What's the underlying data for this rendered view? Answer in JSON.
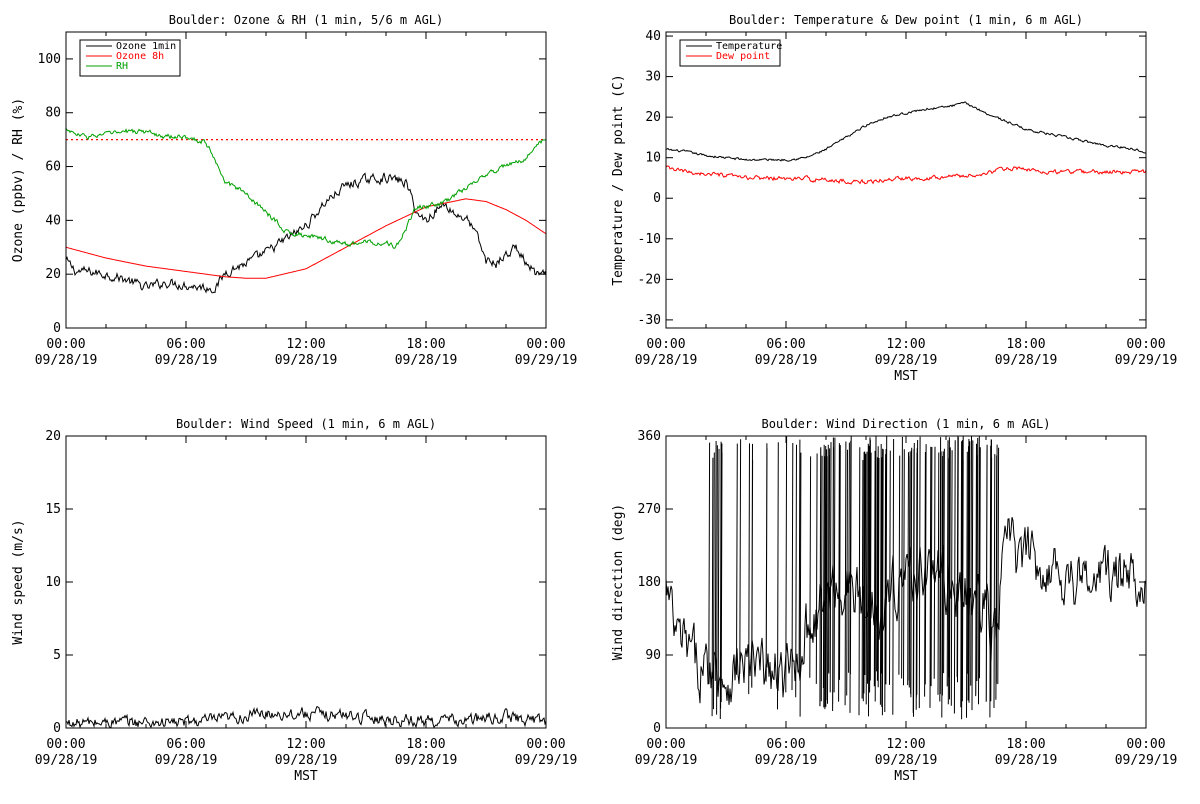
{
  "chart_data": [
    {
      "type": "line",
      "title": "Boulder: Ozone & RH (1 min, 5/6 m AGL)",
      "ylabel": "Ozone (ppbv) / RH (%)",
      "xlabel": "",
      "xlim": [
        0,
        24
      ],
      "ylim": [
        0,
        110
      ],
      "yticks": [
        0,
        20,
        40,
        60,
        80,
        100
      ],
      "x_ticks": [
        {
          "time": "00:00",
          "date": "09/28/19"
        },
        {
          "time": "06:00",
          "date": "09/28/19"
        },
        {
          "time": "12:00",
          "date": "09/28/19"
        },
        {
          "time": "18:00",
          "date": "09/28/19"
        },
        {
          "time": "00:00",
          "date": "09/29/19"
        }
      ],
      "legend": {
        "position": "top-left",
        "entries": [
          {
            "name": "Ozone 1min",
            "color": "#000000"
          },
          {
            "name": "Ozone 8h",
            "color": "#ff0000"
          },
          {
            "name": "RH",
            "color": "#00a000"
          }
        ]
      },
      "reference_line": {
        "y": 70,
        "color": "#ff0000",
        "style": "dotted"
      },
      "series": [
        {
          "name": "Ozone 1min",
          "color": "#000000",
          "noise": 1.5,
          "x": [
            0,
            0.5,
            1,
            2,
            3,
            4,
            5,
            6,
            7,
            7.5,
            8,
            9,
            10,
            11,
            12,
            13,
            14,
            15,
            16,
            17,
            17.3,
            17.6,
            18,
            18.5,
            19,
            19.5,
            20,
            20.5,
            21,
            21.5,
            22,
            22.5,
            23,
            23.5,
            24
          ],
          "y": [
            25,
            21,
            21,
            20,
            18,
            15,
            17,
            16,
            15,
            15,
            21,
            24,
            28,
            33,
            38,
            47,
            53,
            55,
            56,
            54,
            48,
            42,
            40,
            44,
            46,
            42,
            41,
            35,
            25,
            24,
            27,
            30,
            24,
            20,
            19
          ]
        },
        {
          "name": "Ozone 8h",
          "color": "#ff0000",
          "noise": 0,
          "x": [
            0,
            2,
            4,
            6,
            8,
            9,
            10,
            12,
            14,
            16,
            18,
            20,
            21,
            22,
            23,
            24
          ],
          "y": [
            30,
            26,
            23,
            21,
            19,
            18.5,
            18.5,
            22,
            30,
            38,
            45,
            48,
            47,
            44,
            40,
            35
          ]
        },
        {
          "name": "RH",
          "color": "#00a000",
          "noise": 0.8,
          "x": [
            0,
            0.5,
            1,
            2,
            3,
            4,
            5,
            6,
            7,
            7.5,
            8,
            9,
            10,
            11,
            12,
            13,
            14,
            15,
            16,
            16.5,
            17,
            17.5,
            18,
            19,
            20,
            21,
            22,
            23,
            23.5,
            24
          ],
          "y": [
            74,
            72,
            71,
            72,
            73,
            73,
            71,
            71,
            69,
            62,
            54,
            50,
            43,
            36,
            34,
            33,
            31,
            32,
            32,
            30,
            37,
            45,
            45,
            47,
            52,
            57,
            60,
            63,
            68,
            70
          ]
        }
      ]
    },
    {
      "type": "line",
      "title": "Boulder: Temperature & Dew point (1 min, 6 m AGL)",
      "ylabel": "Temperature / Dew point (C)",
      "xlabel": "MST",
      "xlim": [
        0,
        24
      ],
      "ylim": [
        -32,
        41
      ],
      "yticks": [
        -30,
        -20,
        -10,
        0,
        10,
        20,
        30,
        40
      ],
      "x_ticks": [
        {
          "time": "00:00",
          "date": "09/28/19"
        },
        {
          "time": "06:00",
          "date": "09/28/19"
        },
        {
          "time": "12:00",
          "date": "09/28/19"
        },
        {
          "time": "18:00",
          "date": "09/28/19"
        },
        {
          "time": "00:00",
          "date": "09/29/19"
        }
      ],
      "legend": {
        "position": "top-left",
        "entries": [
          {
            "name": "Temperature",
            "color": "#000000"
          },
          {
            "name": "Dew point",
            "color": "#ff0000"
          }
        ]
      },
      "series": [
        {
          "name": "Temperature",
          "color": "#000000",
          "noise": 0.25,
          "x": [
            0,
            1,
            2,
            3,
            4,
            5,
            6,
            7,
            8,
            9,
            10,
            11,
            12,
            13,
            14,
            15,
            16,
            17,
            18,
            19,
            20,
            21,
            22,
            23,
            24
          ],
          "y": [
            12,
            11.5,
            10.5,
            10,
            9.5,
            9.5,
            9.5,
            10,
            12,
            15,
            18,
            20,
            21,
            22,
            22.5,
            23.5,
            21,
            19,
            17,
            16,
            15,
            14,
            13,
            12.5,
            11.5
          ]
        },
        {
          "name": "Dew point",
          "color": "#ff0000",
          "noise": 0.45,
          "x": [
            0,
            1,
            2,
            3,
            4,
            5,
            6,
            7,
            8,
            9,
            10,
            11,
            12,
            13,
            14,
            15,
            16,
            17,
            18,
            19,
            20,
            21,
            22,
            23,
            24
          ],
          "y": [
            7.5,
            6.5,
            6,
            5.5,
            5,
            5,
            4.8,
            4.8,
            4.5,
            4.2,
            4,
            4.5,
            5,
            5,
            5.5,
            5.5,
            6,
            7.5,
            7,
            6.5,
            6.5,
            6.5,
            6.5,
            6.5,
            6.5
          ]
        }
      ]
    },
    {
      "type": "line",
      "title": "Boulder: Wind Speed (1 min, 6 m AGL)",
      "ylabel": "Wind speed (m/s)",
      "xlabel": "MST",
      "xlim": [
        0,
        24
      ],
      "ylim": [
        0,
        20
      ],
      "yticks": [
        0,
        5,
        10,
        15,
        20
      ],
      "x_ticks": [
        {
          "time": "00:00",
          "date": "09/28/19"
        },
        {
          "time": "06:00",
          "date": "09/28/19"
        },
        {
          "time": "12:00",
          "date": "09/28/19"
        },
        {
          "time": "18:00",
          "date": "09/28/19"
        },
        {
          "time": "00:00",
          "date": "09/29/19"
        }
      ],
      "series": [
        {
          "name": "",
          "color": "#000000",
          "noise": 0.35,
          "clip_min": 0,
          "x": [
            0,
            3,
            6,
            8,
            10,
            12,
            13,
            14,
            16,
            18,
            20,
            22,
            23,
            24
          ],
          "y": [
            0.3,
            0.4,
            0.4,
            0.6,
            1.0,
            1.0,
            0.9,
            0.9,
            0.6,
            0.5,
            0.5,
            0.8,
            0.6,
            0.5
          ]
        }
      ]
    },
    {
      "type": "line",
      "title": "Boulder: Wind Direction (1 min, 6 m AGL)",
      "ylabel": "Wind direction (deg)",
      "xlabel": "MST",
      "xlim": [
        0,
        24
      ],
      "ylim": [
        0,
        360
      ],
      "yticks": [
        0,
        90,
        180,
        270,
        360
      ],
      "x_ticks": [
        {
          "time": "00:00",
          "date": "09/28/19"
        },
        {
          "time": "06:00",
          "date": "09/28/19"
        },
        {
          "time": "12:00",
          "date": "09/28/19"
        },
        {
          "time": "18:00",
          "date": "09/28/19"
        },
        {
          "time": "00:00",
          "date": "09/29/19"
        }
      ],
      "series": [
        {
          "name": "",
          "color": "#000000",
          "noise": 30,
          "clip_min": 0,
          "clip_max": 360,
          "x": [
            0,
            0.5,
            1,
            1.5,
            2,
            2.5,
            3,
            3.5,
            4,
            5,
            6,
            6.5,
            7,
            8,
            9,
            10,
            11,
            12,
            13,
            14,
            15,
            16,
            16.5,
            17,
            17.5,
            18,
            19,
            20,
            21,
            22,
            23,
            24
          ],
          "y": [
            170,
            110,
            100,
            80,
            70,
            80,
            60,
            70,
            80,
            70,
            60,
            80,
            120,
            160,
            180,
            150,
            160,
            190,
            200,
            180,
            160,
            150,
            100,
            250,
            210,
            210,
            200,
            190,
            180,
            190,
            185,
            190
          ]
        }
      ]
    }
  ]
}
